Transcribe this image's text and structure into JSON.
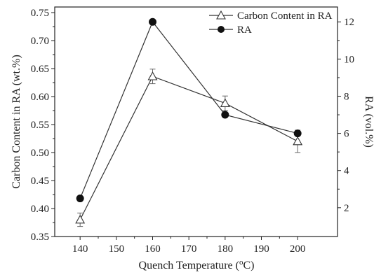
{
  "chart_data": {
    "type": "line",
    "x": [
      140,
      160,
      180,
      200
    ],
    "xlabel_prefix": "Quench Temperature (",
    "xlabel_sup": "o",
    "xlabel_suffix": "C)",
    "xlim": [
      133,
      211
    ],
    "xticks": [
      140,
      150,
      160,
      170,
      180,
      190,
      200
    ],
    "ylabel_left": "Carbon Content in RA (wt.%)",
    "ylim_left": [
      0.35,
      0.76
    ],
    "yticks_left": [
      "0.35",
      "0.40",
      "0.45",
      "0.50",
      "0.55",
      "0.60",
      "0.65",
      "0.70",
      "0.75"
    ],
    "ylabel_right": "RA (vol.%)",
    "ylim_right": [
      0.45,
      12.8
    ],
    "yticks_right": [
      "2",
      "4",
      "6",
      "8",
      "10",
      "12"
    ],
    "grid": false,
    "legend_position": "top-right",
    "series": [
      {
        "name": "Carbon Content in RA",
        "axis": "left",
        "marker": "open-triangle",
        "values": [
          0.38,
          0.636,
          0.588,
          0.52
        ],
        "error": [
          0.012,
          0.013,
          0.013,
          0.02
        ]
      },
      {
        "name": "RA",
        "axis": "right",
        "marker": "filled-circle",
        "values": [
          2.5,
          12.0,
          7.0,
          6.0
        ]
      }
    ],
    "colors": {
      "line": "#333333",
      "marker_fill": "#111111",
      "open_fill": "#ffffff",
      "axis": "#222222"
    }
  }
}
